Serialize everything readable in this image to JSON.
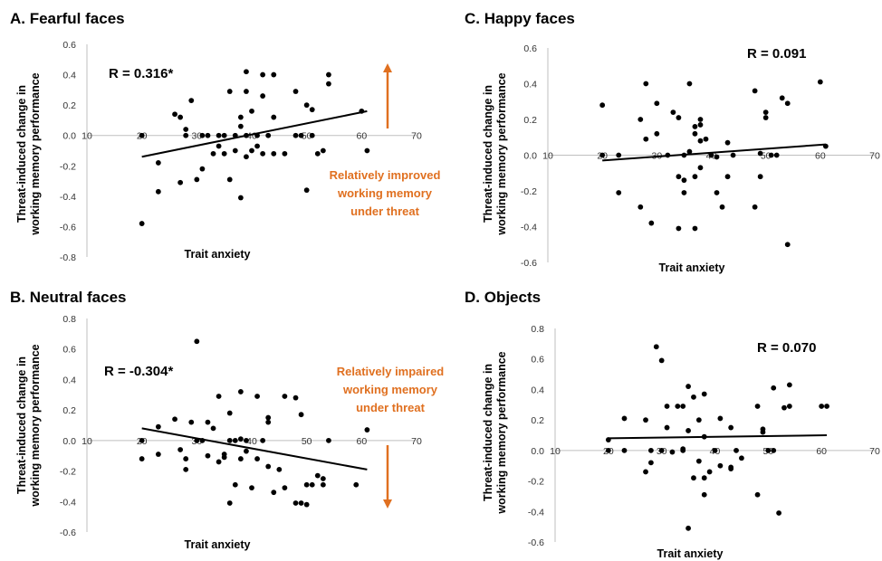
{
  "chart_data": [
    {
      "type": "scatter",
      "panel": "A",
      "title": "A. Fearful faces",
      "xlabel": "Trait anxiety",
      "ylabel": [
        "Threat-induced change in",
        "working memory performance"
      ],
      "xlim": [
        10,
        70
      ],
      "ylim": [
        -0.8,
        0.6
      ],
      "xticks": [
        10,
        20,
        30,
        40,
        50,
        60,
        70
      ],
      "yticks": [
        -0.8,
        -0.6,
        -0.4,
        -0.2,
        0.0,
        0.2,
        0.4,
        0.6
      ],
      "annotation": "R = 0.316*",
      "note": [
        "Relatively improved",
        "working memory",
        "under threat"
      ],
      "arrow": "up",
      "trendline": [
        [
          20,
          -0.14
        ],
        [
          61,
          0.16
        ]
      ],
      "points": [
        [
          20,
          0.0
        ],
        [
          20,
          -0.58
        ],
        [
          23,
          -0.18
        ],
        [
          23,
          -0.37
        ],
        [
          26,
          0.14
        ],
        [
          27,
          -0.31
        ],
        [
          27,
          0.12
        ],
        [
          28,
          0.04
        ],
        [
          28,
          0.0
        ],
        [
          29,
          0.23
        ],
        [
          30,
          -0.29
        ],
        [
          31,
          0.0
        ],
        [
          31,
          -0.22
        ],
        [
          32,
          0.0
        ],
        [
          33,
          -0.12
        ],
        [
          34,
          0.0
        ],
        [
          34,
          -0.07
        ],
        [
          35,
          0.0
        ],
        [
          35,
          -0.12
        ],
        [
          36,
          0.29
        ],
        [
          36,
          -0.29
        ],
        [
          37,
          0.0
        ],
        [
          37,
          -0.1
        ],
        [
          38,
          0.06
        ],
        [
          38,
          0.12
        ],
        [
          38,
          -0.41
        ],
        [
          39,
          0.0
        ],
        [
          39,
          0.42
        ],
        [
          39,
          0.29
        ],
        [
          39,
          -0.14
        ],
        [
          40,
          0.16
        ],
        [
          40,
          -0.1
        ],
        [
          41,
          0.0
        ],
        [
          41,
          -0.07
        ],
        [
          42,
          0.26
        ],
        [
          42,
          0.4
        ],
        [
          42,
          -0.12
        ],
        [
          43,
          0.0
        ],
        [
          44,
          0.12
        ],
        [
          44,
          0.4
        ],
        [
          44,
          -0.12
        ],
        [
          46,
          -0.12
        ],
        [
          48,
          0.29
        ],
        [
          48,
          0.0
        ],
        [
          49,
          0.0
        ],
        [
          50,
          0.2
        ],
        [
          50,
          -0.36
        ],
        [
          51,
          0.17
        ],
        [
          51,
          0.0
        ],
        [
          52,
          -0.12
        ],
        [
          53,
          -0.1
        ],
        [
          54,
          0.34
        ],
        [
          54,
          0.4
        ],
        [
          60,
          0.16
        ],
        [
          61,
          -0.1
        ]
      ]
    },
    {
      "type": "scatter",
      "panel": "B",
      "title": "B. Neutral faces",
      "xlabel": "Trait anxiety",
      "ylabel": [
        "Threat-induced change in",
        "working memory performance"
      ],
      "xlim": [
        10,
        70
      ],
      "ylim": [
        -0.6,
        0.8
      ],
      "xticks": [
        10,
        20,
        30,
        40,
        50,
        60,
        70
      ],
      "yticks": [
        -0.6,
        -0.4,
        -0.2,
        0.0,
        0.2,
        0.4,
        0.6,
        0.8
      ],
      "annotation": "R = -0.304*",
      "note": [
        "Relatively impaired",
        "working memory",
        "under threat"
      ],
      "arrow": "down",
      "trendline": [
        [
          20,
          0.08
        ],
        [
          61,
          -0.19
        ]
      ],
      "points": [
        [
          20,
          0.0
        ],
        [
          20,
          -0.12
        ],
        [
          23,
          0.09
        ],
        [
          23,
          -0.09
        ],
        [
          26,
          0.14
        ],
        [
          27,
          -0.06
        ],
        [
          28,
          -0.12
        ],
        [
          28,
          -0.19
        ],
        [
          29,
          0.12
        ],
        [
          30,
          0.65
        ],
        [
          30,
          0.0
        ],
        [
          31,
          0.0
        ],
        [
          32,
          0.12
        ],
        [
          32,
          -0.1
        ],
        [
          33,
          0.08
        ],
        [
          34,
          -0.14
        ],
        [
          34,
          0.29
        ],
        [
          35,
          -0.11
        ],
        [
          35,
          -0.09
        ],
        [
          36,
          0.18
        ],
        [
          36,
          0.0
        ],
        [
          36,
          -0.41
        ],
        [
          37,
          0.0
        ],
        [
          37,
          -0.29
        ],
        [
          38,
          0.32
        ],
        [
          38,
          0.01
        ],
        [
          38,
          -0.12
        ],
        [
          39,
          0.0
        ],
        [
          39,
          -0.07
        ],
        [
          40,
          -0.31
        ],
        [
          41,
          0.29
        ],
        [
          41,
          -0.12
        ],
        [
          42,
          0.0
        ],
        [
          43,
          0.15
        ],
        [
          43,
          0.12
        ],
        [
          43,
          -0.17
        ],
        [
          44,
          -0.34
        ],
        [
          45,
          -0.19
        ],
        [
          46,
          0.29
        ],
        [
          46,
          -0.31
        ],
        [
          48,
          0.28
        ],
        [
          48,
          -0.41
        ],
        [
          49,
          0.17
        ],
        [
          49,
          -0.41
        ],
        [
          50,
          -0.29
        ],
        [
          50,
          -0.42
        ],
        [
          51,
          -0.29
        ],
        [
          52,
          -0.23
        ],
        [
          53,
          -0.25
        ],
        [
          53,
          -0.29
        ],
        [
          54,
          0.0
        ],
        [
          59,
          -0.29
        ],
        [
          61,
          0.07
        ]
      ]
    },
    {
      "type": "scatter",
      "panel": "C",
      "title": "C. Happy faces",
      "xlabel": "Trait anxiety",
      "ylabel": [
        "Threat-induced change in",
        "working memory performance"
      ],
      "xlim": [
        10,
        70
      ],
      "ylim": [
        -0.6,
        0.6
      ],
      "xticks": [
        10,
        20,
        30,
        40,
        50,
        60,
        70
      ],
      "yticks": [
        -0.6,
        -0.4,
        -0.2,
        0.0,
        0.2,
        0.4,
        0.6
      ],
      "annotation": "R = 0.091",
      "trendline": [
        [
          20,
          -0.03
        ],
        [
          61,
          0.06
        ]
      ],
      "points": [
        [
          20,
          0.28
        ],
        [
          20,
          0.0
        ],
        [
          23,
          -0.21
        ],
        [
          23,
          0.0
        ],
        [
          27,
          0.2
        ],
        [
          27,
          -0.29
        ],
        [
          28,
          0.4
        ],
        [
          28,
          0.09
        ],
        [
          29,
          -0.38
        ],
        [
          30,
          0.29
        ],
        [
          30,
          0.12
        ],
        [
          32,
          0.0
        ],
        [
          33,
          0.24
        ],
        [
          34,
          0.21
        ],
        [
          34,
          -0.41
        ],
        [
          34,
          -0.12
        ],
        [
          35,
          0.0
        ],
        [
          35,
          -0.14
        ],
        [
          35,
          -0.21
        ],
        [
          36,
          0.4
        ],
        [
          36,
          0.02
        ],
        [
          37,
          0.16
        ],
        [
          37,
          0.12
        ],
        [
          37,
          -0.12
        ],
        [
          37,
          -0.41
        ],
        [
          38,
          0.2
        ],
        [
          38,
          0.17
        ],
        [
          38,
          0.08
        ],
        [
          38,
          -0.07
        ],
        [
          39,
          0.09
        ],
        [
          40,
          0.0
        ],
        [
          41,
          -0.21
        ],
        [
          41,
          -0.01
        ],
        [
          42,
          -0.29
        ],
        [
          43,
          0.07
        ],
        [
          43,
          -0.12
        ],
        [
          44,
          0.0
        ],
        [
          48,
          0.36
        ],
        [
          48,
          -0.29
        ],
        [
          49,
          0.01
        ],
        [
          49,
          -0.12
        ],
        [
          50,
          0.24
        ],
        [
          50,
          0.21
        ],
        [
          51,
          0.0
        ],
        [
          52,
          0.0
        ],
        [
          53,
          0.32
        ],
        [
          54,
          0.29
        ],
        [
          54,
          -0.5
        ],
        [
          60,
          0.41
        ],
        [
          61,
          0.05
        ]
      ]
    },
    {
      "type": "scatter",
      "panel": "D",
      "title": "D. Objects",
      "xlabel": "Trait anxiety",
      "ylabel": [
        "Threat-induced change in",
        "working memory performance"
      ],
      "xlim": [
        10,
        70
      ],
      "ylim": [
        -0.6,
        0.8
      ],
      "xticks": [
        10,
        20,
        30,
        40,
        50,
        60,
        70
      ],
      "yticks": [
        -0.6,
        -0.4,
        -0.2,
        0.0,
        0.2,
        0.4,
        0.6,
        0.8
      ],
      "annotation": "R = 0.070",
      "trendline": [
        [
          20,
          0.08
        ],
        [
          61,
          0.1
        ]
      ],
      "points": [
        [
          20,
          0.07
        ],
        [
          20,
          0.0
        ],
        [
          23,
          0.21
        ],
        [
          23,
          0.0
        ],
        [
          27,
          0.2
        ],
        [
          27,
          -0.14
        ],
        [
          28,
          -0.08
        ],
        [
          28,
          0.0
        ],
        [
          29,
          0.68
        ],
        [
          30,
          0.59
        ],
        [
          30,
          0.0
        ],
        [
          31,
          0.29
        ],
        [
          31,
          0.15
        ],
        [
          32,
          -0.01
        ],
        [
          33,
          0.29
        ],
        [
          34,
          0.29
        ],
        [
          34,
          0.01
        ],
        [
          34,
          0.0
        ],
        [
          35,
          0.42
        ],
        [
          35,
          0.13
        ],
        [
          35,
          -0.51
        ],
        [
          36,
          0.35
        ],
        [
          36,
          -0.18
        ],
        [
          37,
          0.2
        ],
        [
          37,
          -0.07
        ],
        [
          38,
          0.37
        ],
        [
          38,
          0.09
        ],
        [
          38,
          -0.18
        ],
        [
          38,
          -0.29
        ],
        [
          39,
          -0.14
        ],
        [
          40,
          0.0
        ],
        [
          41,
          0.21
        ],
        [
          41,
          -0.1
        ],
        [
          43,
          0.15
        ],
        [
          43,
          -0.11
        ],
        [
          43,
          -0.12
        ],
        [
          44,
          0.0
        ],
        [
          45,
          -0.05
        ],
        [
          48,
          0.29
        ],
        [
          48,
          -0.29
        ],
        [
          49,
          0.14
        ],
        [
          49,
          0.12
        ],
        [
          50,
          0.0
        ],
        [
          51,
          0.41
        ],
        [
          51,
          0.0
        ],
        [
          52,
          -0.41
        ],
        [
          53,
          0.28
        ],
        [
          54,
          0.43
        ],
        [
          54,
          0.29
        ],
        [
          60,
          0.29
        ],
        [
          61,
          0.29
        ]
      ]
    }
  ]
}
